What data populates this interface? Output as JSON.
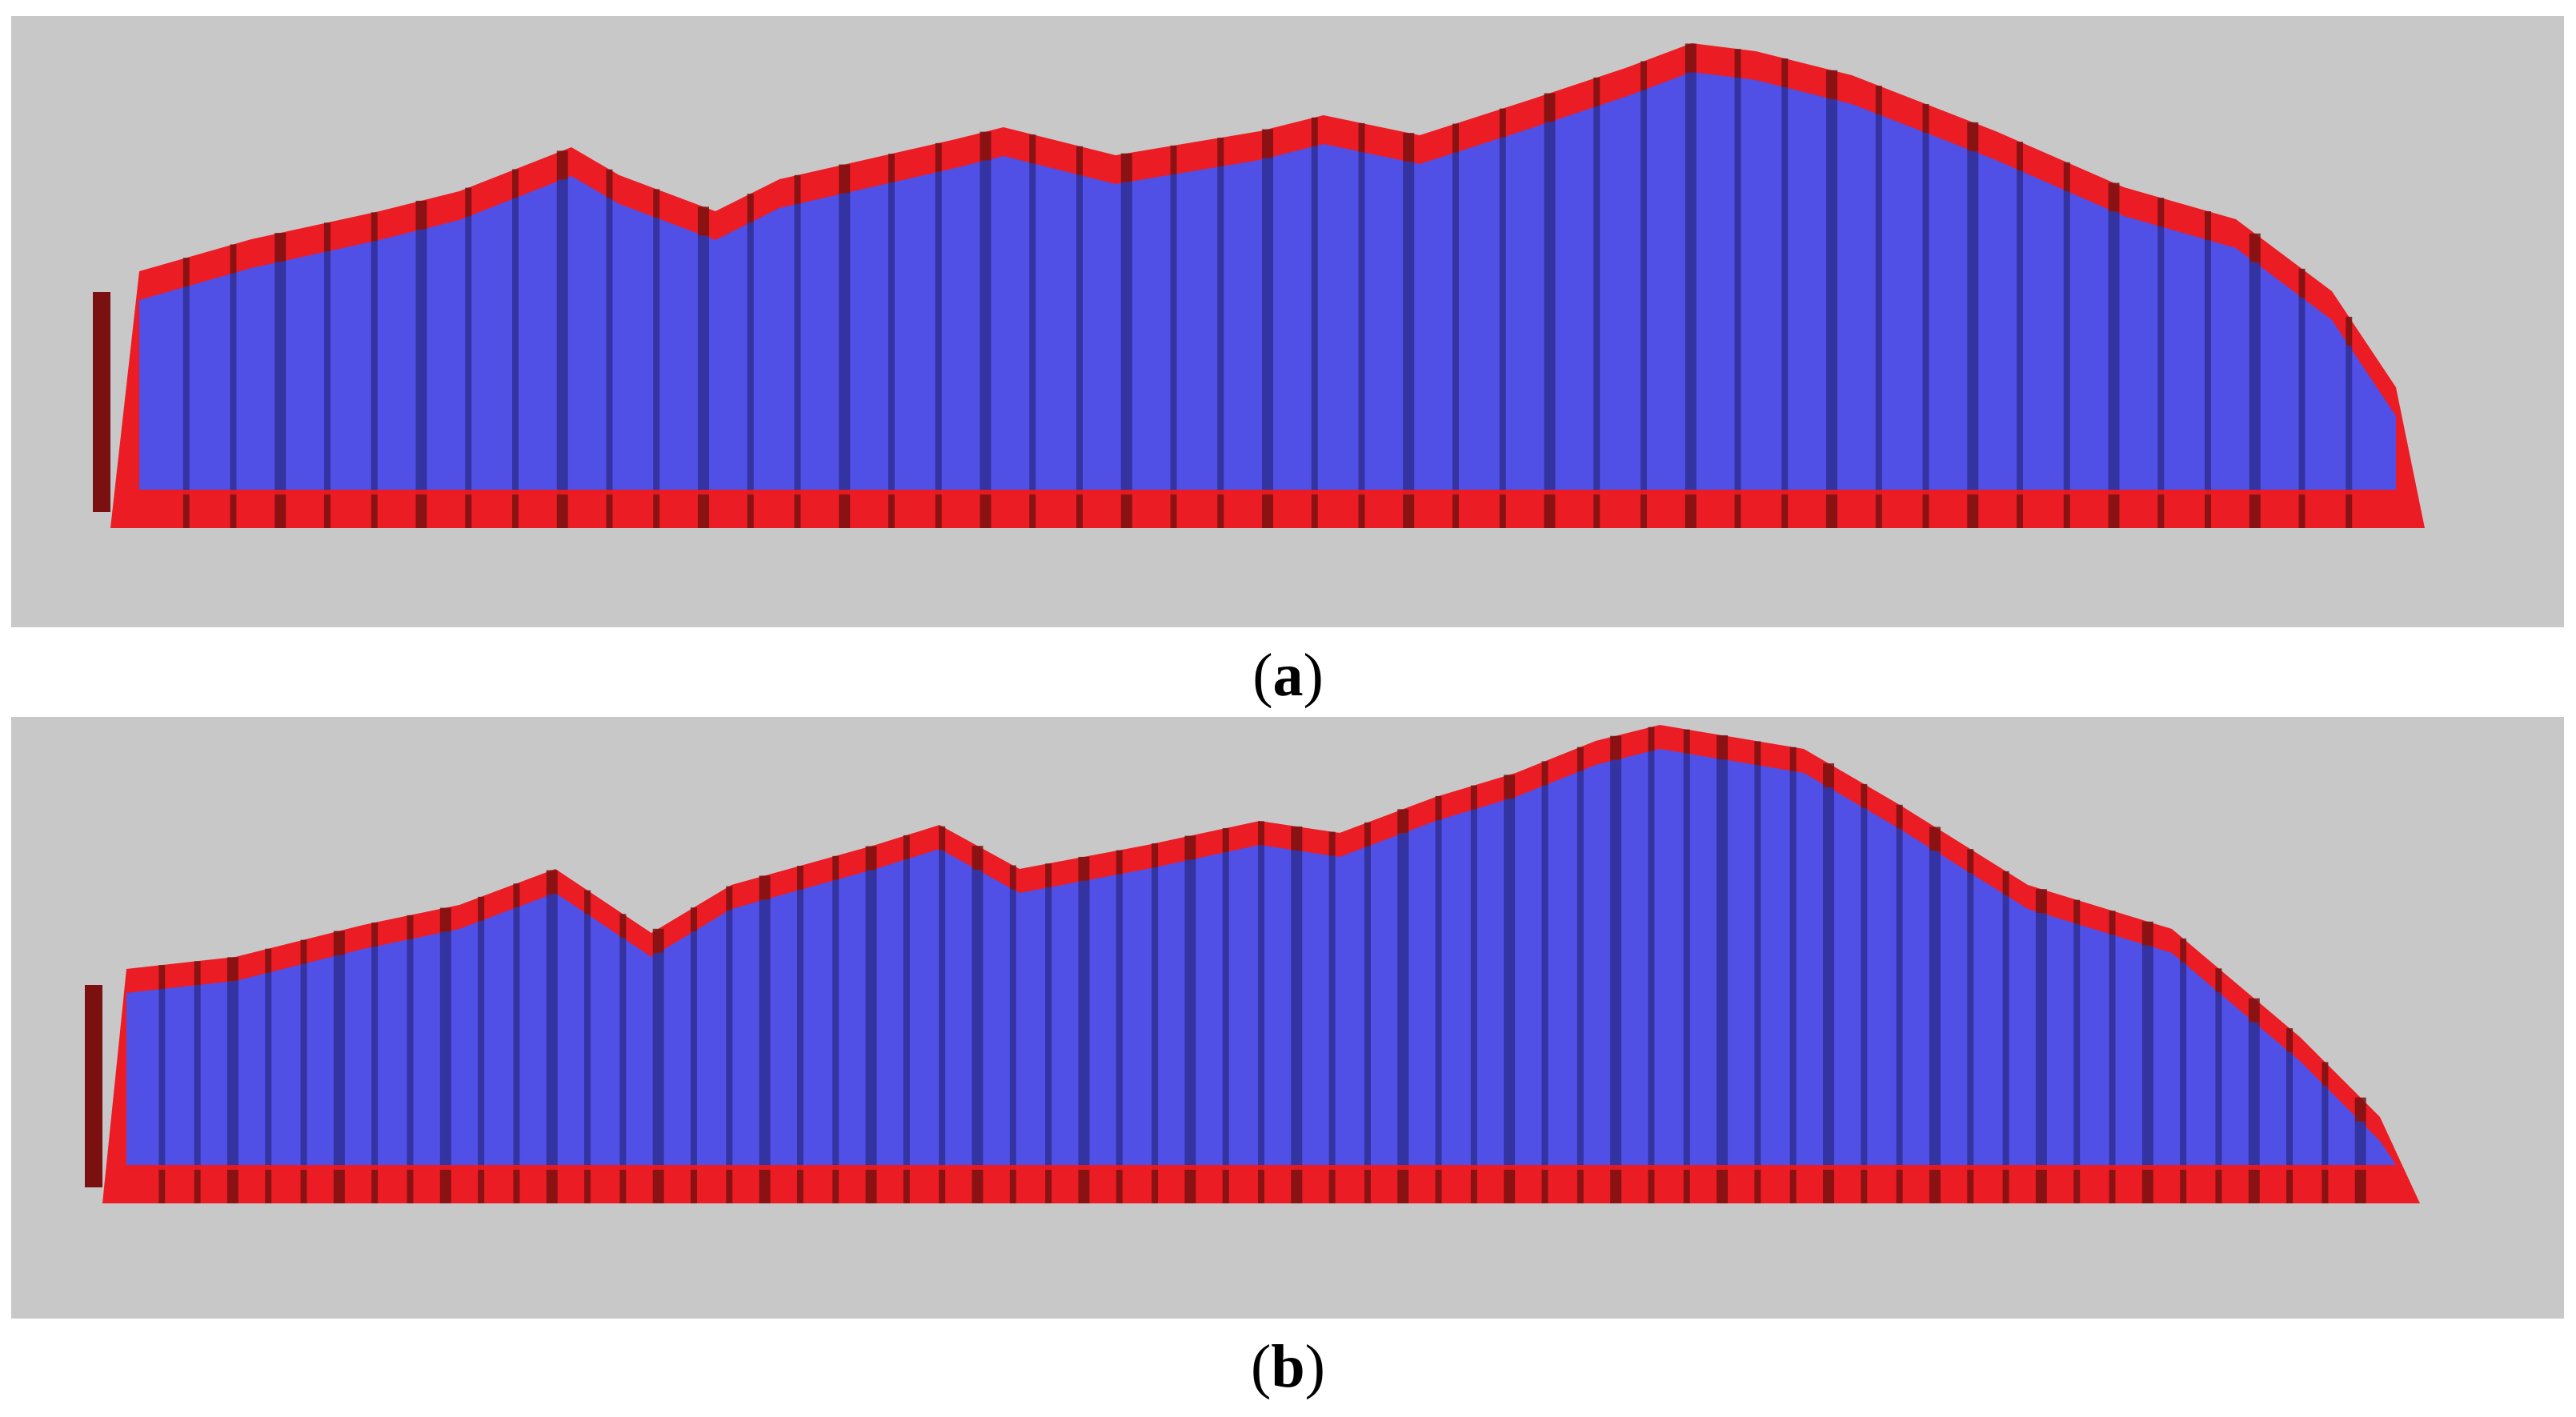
{
  "panels": [
    {
      "id": "a",
      "label": "a",
      "colors": {
        "background": "#c8c8c8",
        "shell": "#ec1c24",
        "shell_dark": "#7a1010",
        "fill": "#5050e6",
        "fill_dark": "#2a2a8a"
      }
    },
    {
      "id": "b",
      "label": "b",
      "colors": {
        "background": "#c8c8c8",
        "shell": "#ec1c24",
        "shell_dark": "#7a1010",
        "fill": "#5050e6",
        "fill_dark": "#2a2a8a"
      }
    }
  ]
}
